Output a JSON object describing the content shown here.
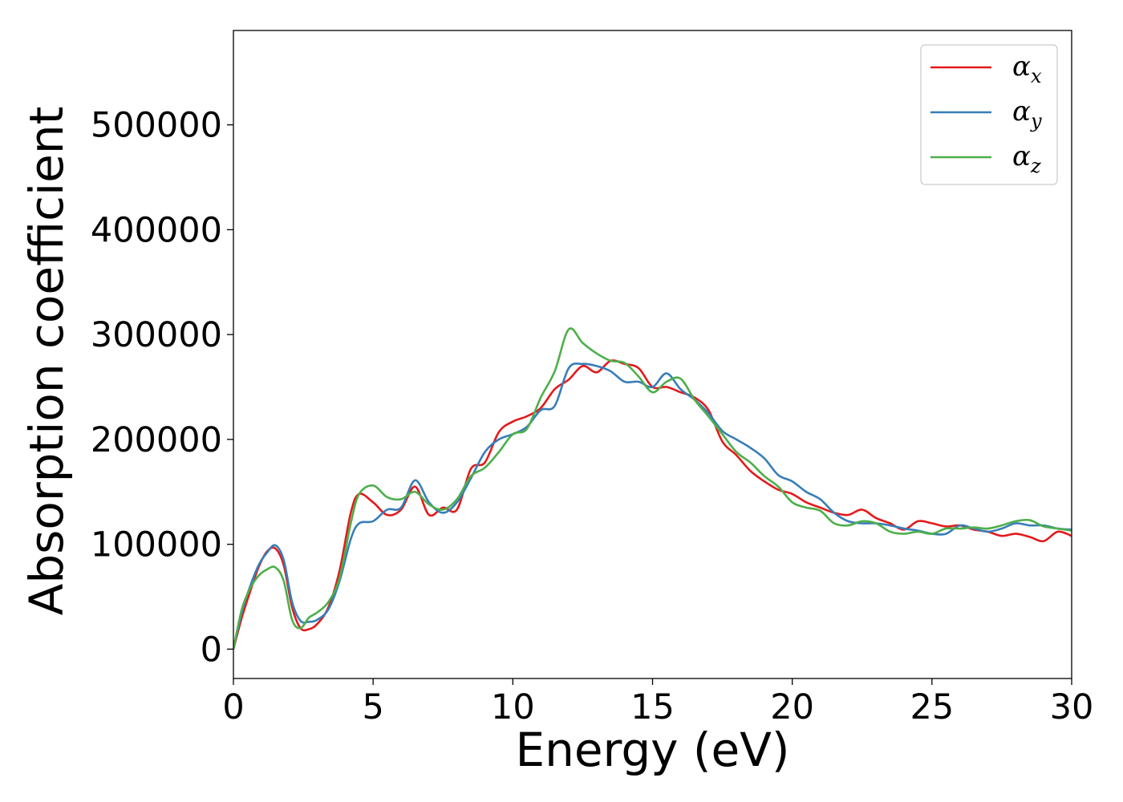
{
  "chart_data": {
    "type": "line",
    "title": "",
    "xlabel": "Energy (eV)",
    "ylabel": "Absorption coefficient",
    "xlim": [
      0,
      30
    ],
    "ylim": [
      -28000,
      590000
    ],
    "xticks": [
      0,
      5,
      10,
      15,
      20,
      25,
      30
    ],
    "yticks": [
      0,
      100000,
      200000,
      300000,
      400000,
      500000
    ],
    "grid": false,
    "legend_position": "top-right",
    "series": [
      {
        "name": "α_x",
        "symbol": "α",
        "subscript": "x",
        "color": "#e41a1c",
        "x": [
          0,
          0.3,
          0.6,
          0.9,
          1.2,
          1.5,
          1.8,
          2.1,
          2.4,
          2.7,
          3.0,
          3.4,
          3.8,
          4.2,
          4.5,
          5.0,
          5.5,
          6.0,
          6.5,
          7.0,
          7.5,
          8.0,
          8.5,
          9.0,
          9.5,
          10.0,
          10.5,
          11.0,
          11.5,
          12.0,
          12.5,
          13.0,
          13.5,
          14.0,
          14.5,
          15.0,
          15.5,
          16.0,
          16.5,
          17.0,
          17.5,
          18.0,
          18.5,
          19.0,
          19.5,
          20.0,
          20.5,
          21.0,
          21.5,
          22.0,
          22.5,
          23.0,
          23.5,
          24.0,
          24.5,
          25.0,
          25.5,
          26.0,
          26.5,
          27.0,
          27.5,
          28.0,
          28.5,
          29.0,
          29.5,
          30.0
        ],
        "y": [
          0,
          30000,
          55000,
          78000,
          93000,
          96000,
          80000,
          40000,
          20000,
          19000,
          24000,
          40000,
          75000,
          130000,
          148000,
          140000,
          128000,
          133000,
          155000,
          128000,
          135000,
          133000,
          172000,
          178000,
          207000,
          217000,
          222000,
          230000,
          248000,
          257000,
          270000,
          264000,
          275000,
          272000,
          268000,
          250000,
          250000,
          245000,
          240000,
          228000,
          198000,
          185000,
          170000,
          160000,
          152000,
          148000,
          140000,
          135000,
          130000,
          128000,
          133000,
          125000,
          120000,
          114000,
          122000,
          120000,
          117000,
          118000,
          114000,
          112000,
          108000,
          110000,
          107000,
          103000,
          112000,
          108000
        ]
      },
      {
        "name": "α_y",
        "symbol": "α",
        "subscript": "y",
        "color": "#377eb8",
        "x": [
          0,
          0.3,
          0.6,
          0.9,
          1.2,
          1.5,
          1.8,
          2.1,
          2.4,
          2.7,
          3.0,
          3.4,
          3.8,
          4.2,
          4.5,
          5.0,
          5.5,
          6.0,
          6.5,
          7.0,
          7.5,
          8.0,
          8.5,
          9.0,
          9.5,
          10.0,
          10.5,
          11.0,
          11.5,
          12.0,
          12.5,
          13.0,
          13.5,
          14.0,
          14.5,
          15.0,
          15.5,
          16.0,
          16.5,
          17.0,
          17.5,
          18.0,
          18.5,
          19.0,
          19.5,
          20.0,
          20.5,
          21.0,
          21.5,
          22.0,
          22.5,
          23.0,
          23.5,
          24.0,
          24.5,
          25.0,
          25.5,
          26.0,
          26.5,
          27.0,
          27.5,
          28.0,
          28.5,
          29.0,
          29.5,
          30.0
        ],
        "y": [
          0,
          35000,
          60000,
          80000,
          92000,
          99000,
          85000,
          45000,
          27000,
          26000,
          28000,
          38000,
          65000,
          105000,
          120000,
          122000,
          133000,
          135000,
          161000,
          140000,
          130000,
          140000,
          163000,
          188000,
          200000,
          205000,
          212000,
          228000,
          232000,
          268000,
          272000,
          270000,
          265000,
          255000,
          255000,
          250000,
          263000,
          248000,
          238000,
          225000,
          208000,
          200000,
          192000,
          182000,
          166000,
          160000,
          150000,
          143000,
          130000,
          122000,
          120000,
          120000,
          118000,
          115000,
          113000,
          110000,
          110000,
          118000,
          115000,
          112000,
          115000,
          120000,
          118000,
          118000,
          115000,
          114000
        ]
      },
      {
        "name": "α_z",
        "symbol": "α",
        "subscript": "z",
        "color": "#4daf4a",
        "x": [
          0,
          0.3,
          0.6,
          0.9,
          1.2,
          1.5,
          1.8,
          2.1,
          2.4,
          2.7,
          3.0,
          3.4,
          3.8,
          4.2,
          4.5,
          5.0,
          5.5,
          6.0,
          6.5,
          7.0,
          7.5,
          8.0,
          8.5,
          9.0,
          9.5,
          10.0,
          10.5,
          11.0,
          11.5,
          12.0,
          12.5,
          13.0,
          13.5,
          14.0,
          14.5,
          15.0,
          15.5,
          16.0,
          16.5,
          17.0,
          17.5,
          18.0,
          18.5,
          19.0,
          19.5,
          20.0,
          20.5,
          21.0,
          21.5,
          22.0,
          22.5,
          23.0,
          23.5,
          24.0,
          24.5,
          25.0,
          25.5,
          26.0,
          26.5,
          27.0,
          27.5,
          28.0,
          28.5,
          29.0,
          29.5,
          30.0
        ],
        "y": [
          0,
          38000,
          58000,
          70000,
          76000,
          78000,
          65000,
          28000,
          20000,
          30000,
          35000,
          45000,
          68000,
          120000,
          148000,
          156000,
          145000,
          143000,
          150000,
          138000,
          133000,
          143000,
          165000,
          173000,
          188000,
          205000,
          210000,
          240000,
          265000,
          305000,
          292000,
          282000,
          275000,
          273000,
          260000,
          245000,
          255000,
          258000,
          238000,
          222000,
          205000,
          188000,
          178000,
          165000,
          155000,
          140000,
          135000,
          132000,
          120000,
          118000,
          122000,
          120000,
          112000,
          110000,
          112000,
          110000,
          115000,
          115000,
          116000,
          115000,
          118000,
          122000,
          123000,
          117000,
          115000,
          113000
        ]
      }
    ]
  }
}
